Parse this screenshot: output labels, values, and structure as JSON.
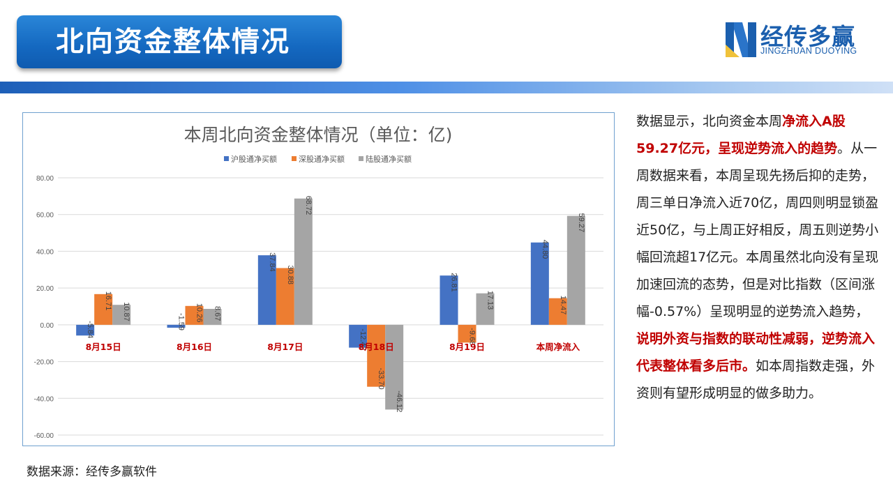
{
  "header": {
    "title": "北向资金整体情况"
  },
  "logo": {
    "cn": "经传多赢",
    "en": "JINGZHUAN DUOYING"
  },
  "colors": {
    "blue": "#4472c4",
    "orange": "#ed7d31",
    "gray": "#a5a5a5",
    "highlight": "#c00000"
  },
  "chart_data": {
    "type": "bar",
    "title": "本周北向资金整体情况（单位：亿)",
    "categories": [
      "8月15日",
      "8月16日",
      "8月17日",
      "8月18日",
      "8月19日",
      "本周净流入"
    ],
    "series": [
      {
        "name": "沪股通净买额",
        "values": [
          -5.84,
          -1.59,
          37.84,
          -12.42,
          26.81,
          44.8
        ]
      },
      {
        "name": "深股通净买额",
        "values": [
          16.71,
          10.26,
          30.88,
          -33.7,
          -9.68,
          14.47
        ]
      },
      {
        "name": "陆股通净买额",
        "values": [
          10.87,
          8.67,
          68.72,
          -46.12,
          17.13,
          59.27
        ]
      }
    ],
    "ylim": [
      -60,
      80
    ],
    "yticks": [
      "80.00",
      "60.00",
      "40.00",
      "20.00",
      "0.00",
      "-20.00",
      "-40.00",
      "-60.00"
    ],
    "grid": true,
    "legend": "top"
  },
  "text": {
    "segments": [
      {
        "t": "数据显示，北向资金本周",
        "hl": false
      },
      {
        "t": "净流入A股59.27亿元，呈现逆势流入的趋势",
        "hl": true
      },
      {
        "t": "。从一周数据来看，本周呈现先扬后抑的走势，周三单日净流入近70亿，周四则明显锁盈近50亿，与上周正好相反，周五则逆势小幅回流超17亿元。本周虽然北向没有呈现加速回流的态势，但是对比指数（区间涨幅-0.57%）呈现明显的逆势流入趋势，",
        "hl": false
      },
      {
        "t": "说明外资与指数的联动性减弱，逆势流入代表整体看多后市。",
        "hl": true
      },
      {
        "t": "如本周指数走强，外资则有望形成明显的做多助力。",
        "hl": false
      }
    ]
  },
  "source": "数据来源：经传多赢软件"
}
